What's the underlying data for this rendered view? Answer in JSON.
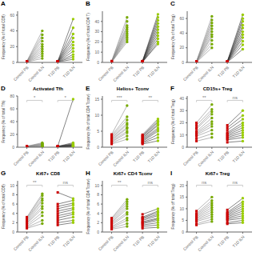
{
  "chart_data": [
    {
      "type": "scatter",
      "label": "A",
      "ylabel": "Frequency (% of total CD8)",
      "categories": [
        "Control PB",
        "Control ILN",
        "T1D PB",
        "T1D ILN"
      ],
      "ylim": [
        0,
        65
      ],
      "yticks": [
        0,
        20,
        40,
        60
      ],
      "series": [
        {
          "color": "#888888",
          "colors": [
            "#cc0000",
            "#77aa00"
          ],
          "values": [
            [
              0.5,
              0.6,
              0.7,
              0.8,
              0.9,
              1.0,
              1.0,
              1.1,
              1.2,
              1.3,
              1.5
            ],
            [
              5,
              8,
              11,
              14,
              17,
              20,
              23,
              27,
              31,
              35,
              40
            ]
          ]
        },
        {
          "color": "#333333",
          "colors": [
            "#cc0000",
            "#99cc00"
          ],
          "values": [
            [
              0.4,
              0.5,
              0.7,
              0.8,
              0.9,
              1.0,
              1.0,
              1.1,
              1.2,
              1.3,
              1.4
            ],
            [
              4,
              7,
              10,
              14,
              18,
              22,
              26,
              31,
              36,
              44,
              55
            ]
          ]
        }
      ]
    },
    {
      "type": "scatter",
      "label": "B",
      "ylabel": "Frequency (% of total CD4 T)",
      "categories": [
        "Control PB",
        "Control ILN",
        "T1D PB",
        "T1D ILN"
      ],
      "ylim": [
        0,
        50
      ],
      "yticks": [
        0,
        10,
        20,
        30,
        40
      ],
      "series": [
        {
          "color": "#888888",
          "colors": [
            "#cc0000",
            "#77aa00"
          ],
          "values": [
            [
              0.3,
              0.4,
              0.5,
              0.6,
              0.7,
              0.8,
              0.9,
              1.0,
              1.1,
              1.2,
              1.3
            ],
            [
              20,
              22,
              24,
              26,
              28,
              30,
              32,
              34,
              36,
              40,
              44
            ]
          ]
        },
        {
          "color": "#333333",
          "colors": [
            "#cc0000",
            "#99cc00"
          ],
          "values": [
            [
              0.3,
              0.4,
              0.5,
              0.6,
              0.7,
              0.8,
              0.9,
              1.0,
              1.1,
              1.2,
              1.3
            ],
            [
              18,
              20,
              23,
              26,
              29,
              32,
              35,
              38,
              41,
              44,
              47
            ]
          ]
        }
      ]
    },
    {
      "type": "scatter",
      "label": "C",
      "ylabel": "Frequency (% of total Treg)",
      "categories": [
        "Control PB",
        "Control ILN",
        "T1D PB",
        "T1D ILN"
      ],
      "ylim": [
        0,
        70
      ],
      "yticks": [
        0,
        20,
        40,
        60
      ],
      "series": [
        {
          "color": "#888888",
          "colors": [
            "#cc0000",
            "#77aa00"
          ],
          "values": [
            [
              0.3,
              0.4,
              0.5,
              0.6,
              0.7,
              0.8,
              0.9,
              1.0,
              1.1,
              1.2,
              1.3
            ],
            [
              20,
              25,
              30,
              35,
              38,
              42,
              46,
              50,
              54,
              58,
              63
            ]
          ]
        },
        {
          "color": "#333333",
          "colors": [
            "#cc0000",
            "#99cc00"
          ],
          "values": [
            [
              0.3,
              0.4,
              0.5,
              0.6,
              0.7,
              0.8,
              0.9,
              1.0,
              1.1,
              1.2,
              1.3
            ],
            [
              18,
              24,
              29,
              34,
              38,
              42,
              47,
              51,
              56,
              60,
              65
            ]
          ]
        }
      ]
    },
    {
      "type": "scatter",
      "label": "D",
      "title": "Activated Tfh",
      "ylabel": "Frequency (% of total Tfh)",
      "categories": [
        "Control PB",
        "Control ILN",
        "T1D PB",
        "T1D ILN"
      ],
      "ylim": [
        0,
        80
      ],
      "yticks": [
        0,
        20,
        40,
        60,
        80
      ],
      "annotations": [
        {
          "text": "*",
          "categories": [
            "Control PB",
            "Control ILN"
          ]
        },
        {
          "text": "*",
          "categories": [
            "T1D PB",
            "T1D ILN"
          ]
        }
      ],
      "series": [
        {
          "color": "#888888",
          "colors": [
            "#cc0000",
            "#77aa00"
          ],
          "values": [
            [
              0.3,
              0.4,
              0.6,
              0.7,
              0.8,
              0.9,
              1.0,
              1.1,
              1.2,
              1.3,
              1.5
            ],
            [
              0.5,
              0.8,
              1.2,
              1.8,
              2.5,
              3.0,
              3.8,
              4.5,
              5.2,
              6.0,
              7.0
            ]
          ]
        },
        {
          "color": "#333333",
          "colors": [
            "#cc0000",
            "#99cc00"
          ],
          "values": [
            [
              0.3,
              0.4,
              0.6,
              0.7,
              0.8,
              0.9,
              1.0,
              1.1,
              1.2,
              1.3,
              1.4
            ],
            [
              0.8,
              1.2,
              1.8,
              2.2,
              2.8,
              3.2,
              3.8,
              4.5,
              5.5,
              7.0,
              75.0
            ]
          ]
        }
      ]
    },
    {
      "type": "scatter",
      "label": "E",
      "title": "Helios+ Tconv",
      "ylabel": "Frequency (% of total CD4 Tconv)",
      "categories": [
        "Control PB",
        "Control ILN",
        "T1D PB",
        "T1D ILN"
      ],
      "ylim": [
        0,
        16
      ],
      "yticks": [
        0,
        5,
        10,
        15
      ],
      "annotations": [
        {
          "text": "***",
          "categories": [
            "Control PB",
            "Control ILN"
          ]
        },
        {
          "text": "**",
          "categories": [
            "T1D PB",
            "T1D ILN"
          ]
        }
      ],
      "series": [
        {
          "color": "#888888",
          "colors": [
            "#cc0000",
            "#77aa00"
          ],
          "values": [
            [
              1.0,
              1.3,
              1.6,
              1.9,
              2.2,
              2.5,
              2.8,
              3.1,
              3.4,
              3.7,
              4.0
            ],
            [
              2.5,
              3.5,
              4.5,
              5.0,
              5.8,
              6.2,
              7.0,
              7.5,
              8.5,
              9.5,
              13.0
            ]
          ]
        },
        {
          "color": "#333333",
          "colors": [
            "#cc0000",
            "#99cc00"
          ],
          "values": [
            [
              1.0,
              1.3,
              1.5,
              1.8,
              2.1,
              2.4,
              2.7,
              3.0,
              3.3,
              3.6,
              3.9
            ],
            [
              2.0,
              3.0,
              4.0,
              5.0,
              5.5,
              6.0,
              6.8,
              7.2,
              7.8,
              8.2,
              8.8
            ]
          ]
        }
      ]
    },
    {
      "type": "scatter",
      "label": "F",
      "title": "CD15s+ Treg",
      "ylabel": "Frequency (% of total Treg)",
      "categories": [
        "Control PB",
        "Control ILN",
        "T1D PB",
        "T1D ILN"
      ],
      "ylim": [
        0,
        42
      ],
      "yticks": [
        0,
        10,
        20,
        30,
        40
      ],
      "annotations": [
        {
          "text": "**",
          "categories": [
            "Control PB",
            "Control ILN"
          ]
        },
        {
          "text": "ns",
          "categories": [
            "T1D PB",
            "T1D ILN"
          ]
        }
      ],
      "series": [
        {
          "color": "#888888",
          "colors": [
            "#cc0000",
            "#77aa00"
          ],
          "values": [
            [
              5,
              7,
              9,
              10,
              11,
              12,
              13,
              15,
              16,
              18,
              20
            ],
            [
              8,
              11,
              14,
              17,
              19,
              21,
              24,
              27,
              29,
              31,
              35
            ]
          ]
        },
        {
          "color": "#333333",
          "colors": [
            "#cc0000",
            "#99cc00"
          ],
          "values": [
            [
              4,
              6,
              7,
              8,
              9,
              10,
              11,
              12,
              14,
              16,
              18
            ],
            [
              5,
              8,
              10,
              12,
              14,
              16,
              18,
              20,
              23,
              26,
              30
            ]
          ]
        }
      ]
    },
    {
      "type": "scatter",
      "label": "G",
      "title": "Ki67+ CD8",
      "ylabel": "Frequency (% of total CD8)",
      "categories": [
        "Control PB",
        "Control ILN",
        "T1D PB",
        "T1D ILN"
      ],
      "ylim": [
        0,
        11
      ],
      "yticks": [
        0,
        2,
        4,
        6,
        8,
        10
      ],
      "annotations": [
        {
          "text": "**",
          "categories": [
            "Control PB",
            "Control ILN"
          ]
        },
        {
          "text": "ns",
          "categories": [
            "T1D PB",
            "T1D ILN"
          ]
        }
      ],
      "series": [
        {
          "color": "#888888",
          "colors": [
            "#cc0000",
            "#77aa00"
          ],
          "values": [
            [
              0.8,
              1.0,
              1.2,
              1.5,
              1.8,
              2.0,
              2.2,
              2.5,
              2.8,
              3.0,
              3.2
            ],
            [
              1.8,
              2.5,
              3.5,
              4.2,
              5.0,
              5.5,
              6.2,
              6.8,
              7.2,
              7.8,
              8.2
            ]
          ]
        },
        {
          "color": "#333333",
          "colors": [
            "#cc0000",
            "#99cc00"
          ],
          "values": [
            [
              1.5,
              2.0,
              2.5,
              3.0,
              3.5,
              4.0,
              4.5,
              5.0,
              5.5,
              6.0,
              8.5
            ],
            [
              2.0,
              2.5,
              3.2,
              3.8,
              4.2,
              4.8,
              5.2,
              5.8,
              6.2,
              6.8,
              7.2
            ]
          ]
        }
      ]
    },
    {
      "type": "scatter",
      "label": "H",
      "title": "Ki67+ CD4 Tconv",
      "ylabel": "Frequency (% of total CD4 Tconv)",
      "categories": [
        "Control PB",
        "Control ILN",
        "T1D PB",
        "T1D ILN"
      ],
      "ylim": [
        0,
        11
      ],
      "yticks": [
        0,
        2,
        4,
        6,
        8,
        10
      ],
      "annotations": [
        {
          "text": "**",
          "categories": [
            "Control PB",
            "Control ILN"
          ]
        },
        {
          "text": "ns",
          "categories": [
            "T1D PB",
            "T1D ILN"
          ]
        }
      ],
      "series": [
        {
          "color": "#888888",
          "colors": [
            "#cc0000",
            "#77aa00"
          ],
          "values": [
            [
              0.6,
              0.8,
              1.0,
              1.2,
              1.5,
              1.8,
              2.0,
              2.2,
              2.5,
              2.8,
              3.0
            ],
            [
              1.2,
              1.8,
              2.5,
              3.0,
              3.8,
              4.2,
              5.0,
              5.5,
              6.0,
              6.5,
              7.0
            ]
          ]
        },
        {
          "color": "#333333",
          "colors": [
            "#cc0000",
            "#99cc00"
          ],
          "values": [
            [
              0.8,
              1.2,
              1.5,
              1.8,
              2.0,
              2.2,
              2.5,
              2.8,
              3.0,
              3.2,
              3.8
            ],
            [
              1.0,
              1.5,
              2.0,
              2.5,
              2.8,
              3.0,
              3.5,
              3.8,
              4.2,
              4.5,
              5.0
            ]
          ]
        }
      ]
    },
    {
      "type": "scatter",
      "label": "I",
      "title": "Ki67+ Treg",
      "ylabel": "Frequency (% off total Treg)",
      "categories": [
        "Control PB",
        "Control ILN",
        "T1D PB",
        "T1D ILN"
      ],
      "ylim": [
        0,
        22
      ],
      "yticks": [
        0,
        5,
        10,
        15,
        20
      ],
      "annotations": [
        {
          "text": "ns",
          "categories": [
            "Control PB",
            "Control ILN"
          ]
        },
        {
          "text": "ns",
          "categories": [
            "T1D PB",
            "T1D ILN"
          ]
        }
      ],
      "series": [
        {
          "color": "#888888",
          "colors": [
            "#cc0000",
            "#77aa00"
          ],
          "values": [
            [
              3.0,
              3.5,
              4.5,
              5.0,
              5.5,
              6.0,
              6.5,
              7.0,
              7.5,
              8.0,
              9.0
            ],
            [
              4.5,
              5.5,
              6.5,
              7.5,
              8.5,
              9.5,
              10.5,
              11.5,
              12.5,
              13.5,
              15.0
            ]
          ]
        },
        {
          "color": "#333333",
          "colors": [
            "#cc0000",
            "#99cc00"
          ],
          "values": [
            [
              3.5,
              4.0,
              5.0,
              5.5,
              6.0,
              6.5,
              7.0,
              7.5,
              8.0,
              8.5,
              9.5
            ],
            [
              4.0,
              5.0,
              6.0,
              7.0,
              8.0,
              9.0,
              10.0,
              11.0,
              12.0,
              13.0,
              14.5
            ]
          ]
        }
      ]
    }
  ]
}
